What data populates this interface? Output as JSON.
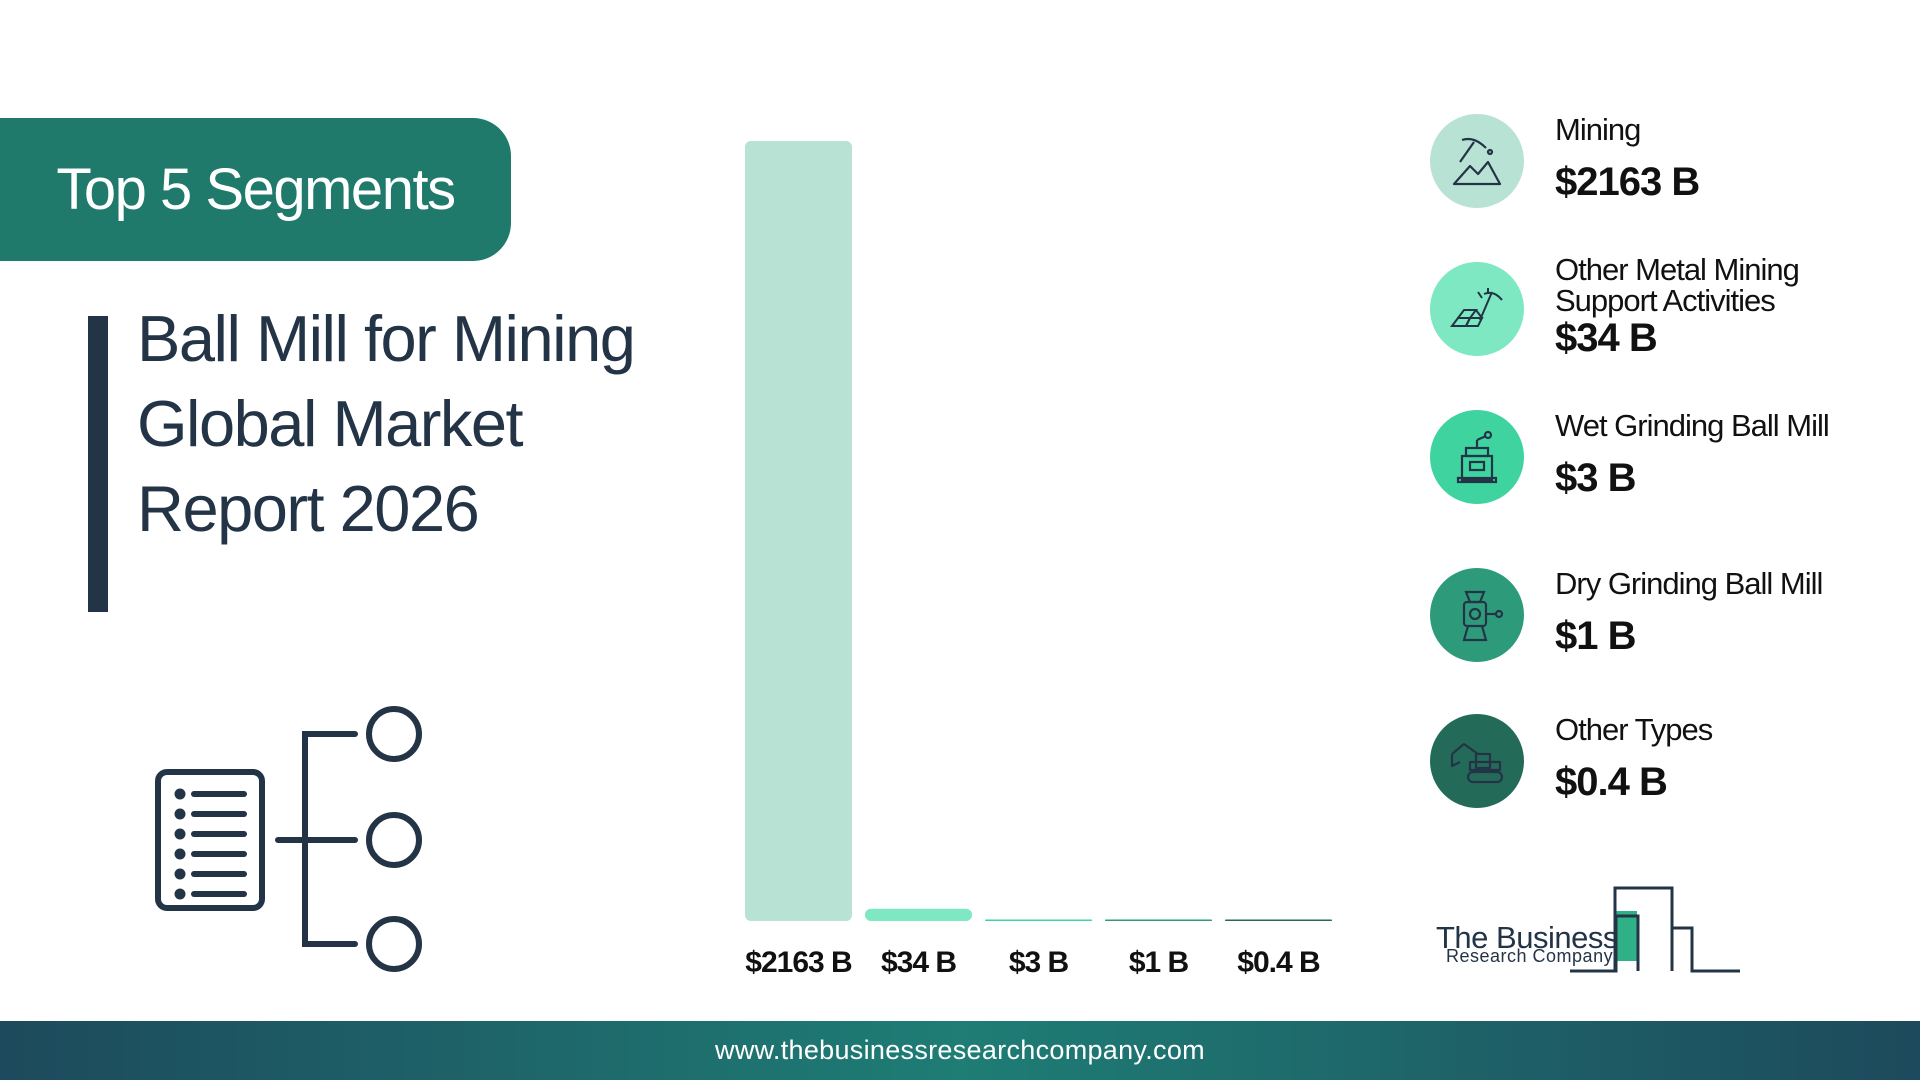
{
  "badge": {
    "label": "Top 5 Segments"
  },
  "report_title": {
    "lines": [
      "Ball Mill for Mining",
      "Global Market",
      "Report 2026"
    ]
  },
  "legend": {
    "items": [
      {
        "name": "Mining",
        "value": "$2163 B",
        "color": "#b8e2d3",
        "icon": "pickaxe-mountain-icon"
      },
      {
        "name": "Other Metal Mining Support Activities",
        "value": "$34 B",
        "color": "#7de8c2",
        "icon": "gold-bars-pickaxe-icon"
      },
      {
        "name": "Wet Grinding Ball Mill",
        "value": "$3 B",
        "color": "#3fd3a0",
        "icon": "grinder-icon"
      },
      {
        "name": "Dry Grinding Ball Mill",
        "value": "$1 B",
        "color": "#2d9b7a",
        "icon": "meat-grinder-icon"
      },
      {
        "name": "Other Types",
        "value": "$0.4 B",
        "color": "#236b58",
        "icon": "excavator-icon"
      }
    ]
  },
  "logo": {
    "name": "The Business",
    "sub": "Research Company"
  },
  "footer": {
    "url": "www.thebusinessresearchcompany.com"
  },
  "chart_data": {
    "type": "bar",
    "categories": [
      "Mining",
      "Other Metal Mining Support Activities",
      "Wet Grinding Ball Mill",
      "Dry Grinding Ball Mill",
      "Other Types"
    ],
    "values": [
      2163,
      34,
      3,
      1,
      0.4
    ],
    "value_labels": [
      "$2163 B",
      "$34 B",
      "$3 B",
      "$1 B",
      "$0.4 B"
    ],
    "colors": [
      "#b8e2d3",
      "#7de8c2",
      "#3fd3a0",
      "#2d9b7a",
      "#236b58"
    ],
    "unit": "$ B",
    "ylim": [
      0,
      2163
    ],
    "grid": false
  }
}
